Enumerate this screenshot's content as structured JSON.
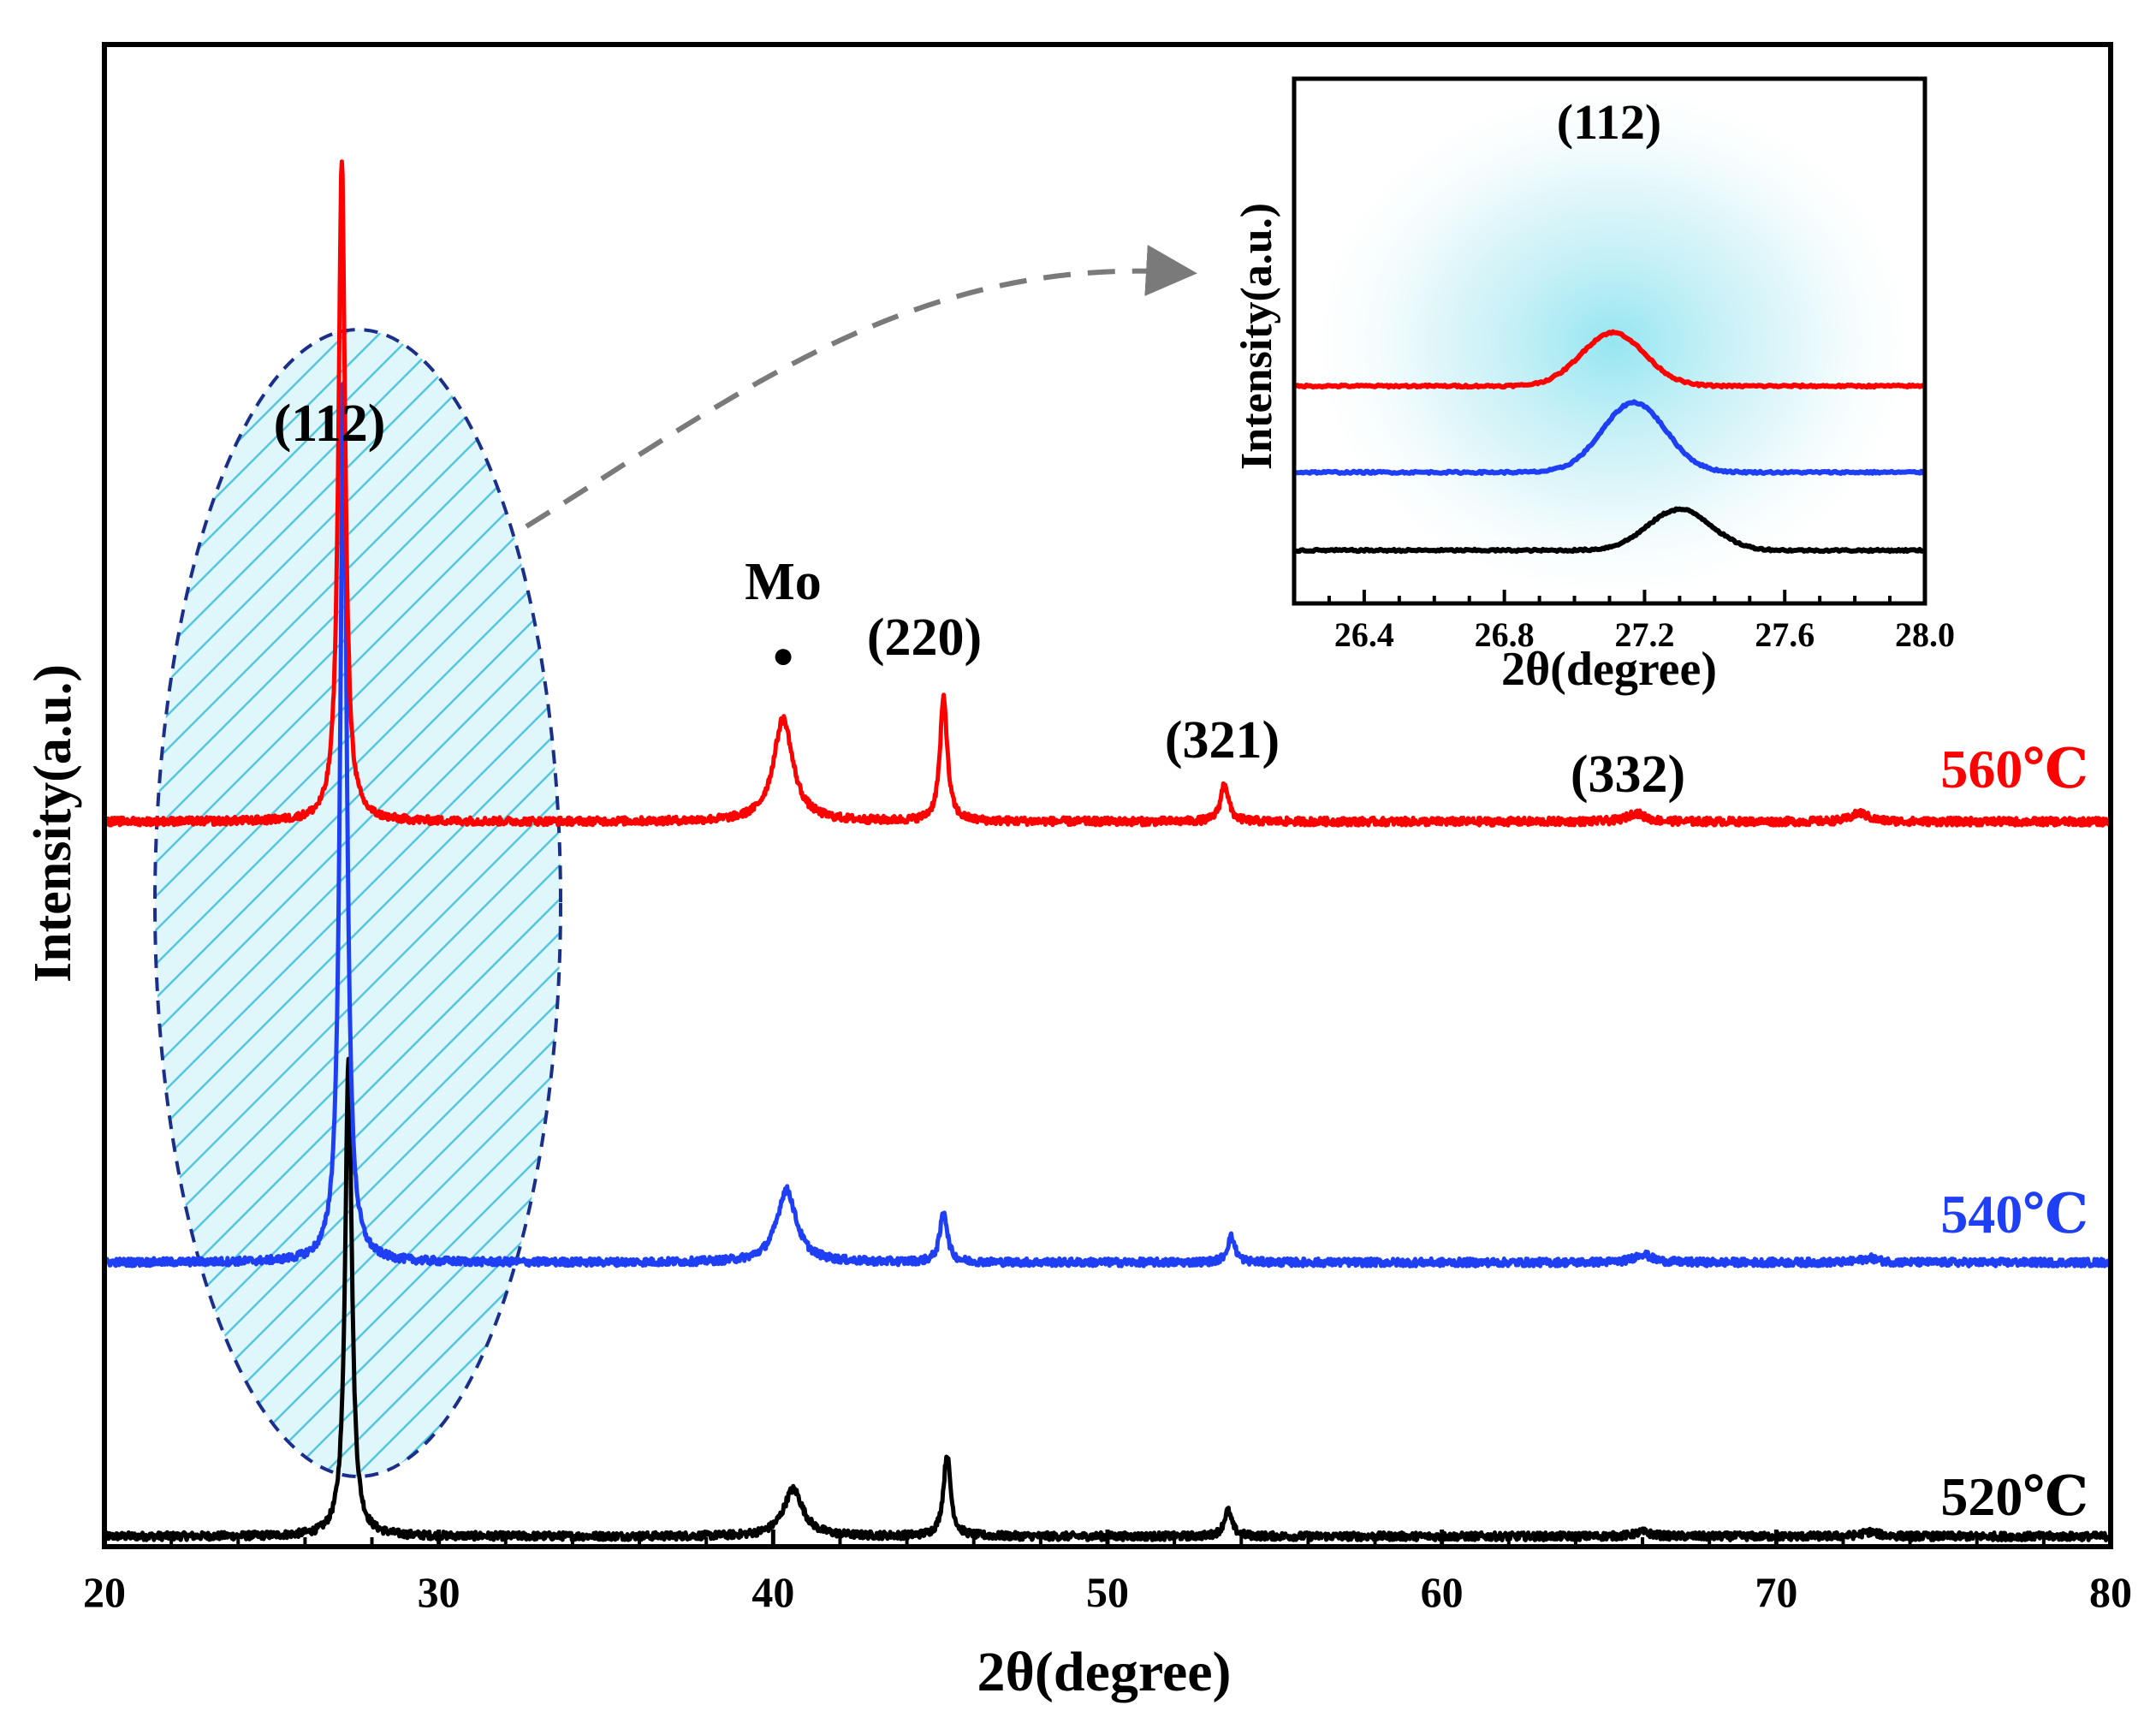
{
  "chart_data": [
    {
      "type": "line",
      "title": "",
      "xlabel": "2θ(degree)",
      "ylabel": "Intensity(a.u.)",
      "xlim": [
        20,
        80
      ],
      "x_ticks": [
        20,
        30,
        40,
        50,
        60,
        70,
        80
      ],
      "y_tick_labels": false,
      "series": [
        {
          "name": "520℃",
          "color": "#000000",
          "baseline": 0.0,
          "peaks": [
            {
              "x": 27.3,
              "height": 1.12,
              "width": 0.12
            },
            {
              "x": 40.6,
              "height": 0.11,
              "width": 0.35
            },
            {
              "x": 45.2,
              "height": 0.19,
              "width": 0.13
            },
            {
              "x": 53.6,
              "height": 0.06,
              "width": 0.14
            },
            {
              "x": 66.0,
              "height": 0.01,
              "width": 0.3
            },
            {
              "x": 72.8,
              "height": 0.01,
              "width": 0.3
            }
          ]
        },
        {
          "name": "540℃",
          "color": "#1f3ff5",
          "baseline": 0.64,
          "peaks": [
            {
              "x": 27.15,
              "height": 2.06,
              "width": 0.12
            },
            {
              "x": 40.4,
              "height": 0.17,
              "width": 0.35
            },
            {
              "x": 45.1,
              "height": 0.12,
              "width": 0.13
            },
            {
              "x": 53.7,
              "height": 0.06,
              "width": 0.14
            },
            {
              "x": 66.0,
              "height": 0.02,
              "width": 0.3
            },
            {
              "x": 72.8,
              "height": 0.01,
              "width": 0.3
            }
          ]
        },
        {
          "name": "560℃",
          "color": "#ff0000",
          "baseline": 1.67,
          "peaks": [
            {
              "x": 27.1,
              "height": 1.55,
              "width": 0.12
            },
            {
              "x": 40.3,
              "height": 0.24,
              "width": 0.35
            },
            {
              "x": 45.1,
              "height": 0.29,
              "width": 0.13
            },
            {
              "x": 53.5,
              "height": 0.09,
              "width": 0.14
            },
            {
              "x": 65.8,
              "height": 0.02,
              "width": 0.3
            },
            {
              "x": 72.5,
              "height": 0.02,
              "width": 0.3
            }
          ]
        }
      ],
      "annotations": [
        {
          "text": "(112)",
          "x": 27.1
        },
        {
          "text": "Mo",
          "x": 40.4,
          "marker": "●"
        },
        {
          "text": "(220)",
          "x": 45.3
        },
        {
          "text": "(321)",
          "x": 53.2
        },
        {
          "text": "(332)",
          "x": 65.7
        }
      ],
      "highlight": "dashed ellipse with diagonal hatching around the (112) peaks, arrow pointing to inset"
    },
    {
      "type": "line",
      "title": "",
      "inset": true,
      "xlabel": "2θ(degree)",
      "ylabel": "Intensity(a.u.)",
      "xlim": [
        26.2,
        28.0
      ],
      "x_ticks": [
        26.4,
        26.8,
        27.2,
        27.6,
        28.0
      ],
      "x_tick_labels": [
        "26.4",
        "26.8",
        "27.2",
        "27.6",
        "28.0"
      ],
      "annotation": "(112)",
      "series": [
        {
          "name": "560℃",
          "color": "#ff0000",
          "baseline": 2.0,
          "peak_x": 27.11,
          "peak_height": 0.65
        },
        {
          "name": "540℃",
          "color": "#1f3ff5",
          "baseline": 0.95,
          "peak_x": 27.17,
          "peak_height": 0.85
        },
        {
          "name": "520℃",
          "color": "#000000",
          "baseline": 0.0,
          "peak_x": 27.3,
          "peak_height": 0.5
        }
      ]
    }
  ]
}
